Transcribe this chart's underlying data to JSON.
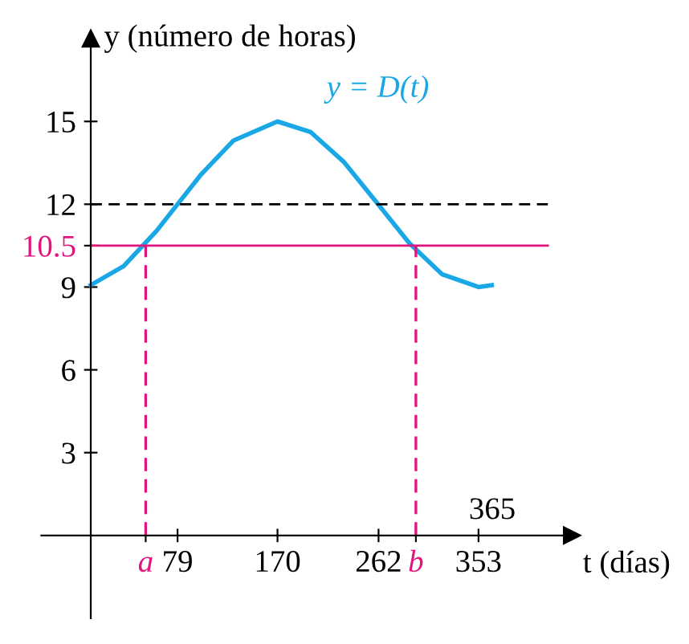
{
  "chart_data": {
    "type": "line",
    "xlabel": "t (días)",
    "ylabel": "y (número de horas)",
    "xlim": [
      -45,
      438
    ],
    "ylim": [
      -3,
      18
    ],
    "xticks": [
      {
        "value": 50,
        "label": "a"
      },
      79,
      170,
      262,
      {
        "value": 296,
        "label": "b"
      },
      353
    ],
    "yticks": [
      3,
      6,
      9,
      {
        "value": 10.5,
        "label": "10.5"
      },
      12,
      15
    ],
    "series": [
      {
        "name": "y = D(t)",
        "color": "#1aa7e6",
        "x": [
          0,
          30,
          60,
          79,
          100,
          130,
          170,
          200,
          230,
          262,
          290,
          320,
          353,
          365
        ],
        "values": [
          9.07,
          9.76,
          11.04,
          12,
          13.06,
          14.31,
          15.0,
          14.62,
          13.55,
          11.98,
          10.59,
          9.46,
          9.0,
          9.07
        ]
      },
      {
        "color": "#e0157e",
        "line_style": "dashed",
        "x": [
          50,
          50
        ],
        "values": [
          0,
          10.5
        ]
      },
      {
        "color": "#e0157e",
        "line_style": "dashed",
        "x": [
          296,
          296
        ],
        "values": [
          0,
          10.5
        ]
      }
    ],
    "ref_lines": [
      {
        "axis": "y",
        "value": 12,
        "color": "#000000",
        "line_style": "dashed"
      },
      {
        "axis": "y",
        "value": 10.5,
        "color": "#e0157e",
        "line_style": "solid"
      }
    ],
    "annotations": [
      "365"
    ],
    "grid": false
  }
}
